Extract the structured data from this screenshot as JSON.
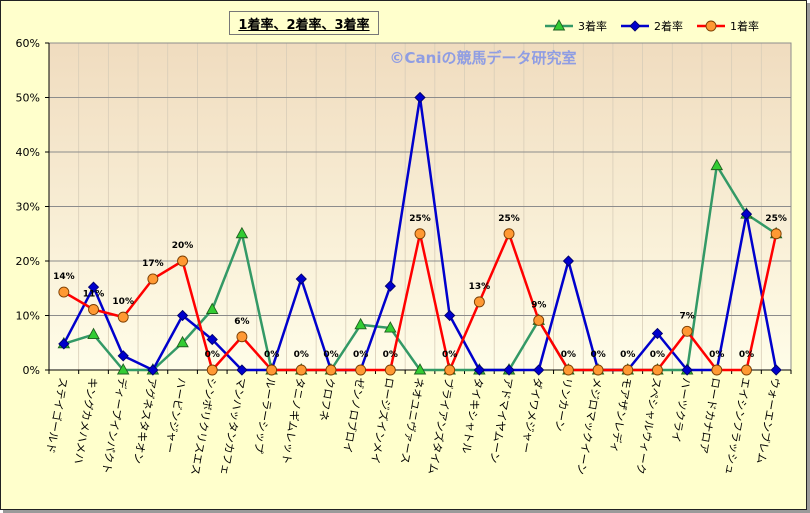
{
  "chart_data": {
    "type": "line",
    "title": "1着率、2着率、3着率",
    "categories": [
      "ステイゴールド",
      "キングカメハメハ",
      "ディープインパクト",
      "アグネスタキオン",
      "ハービンジャー",
      "シンボリクリスエス",
      "マンハッタンカフェ",
      "ルーラーシップ",
      "タニノギムレット",
      "クロフネ",
      "ゼンノロブロイ",
      "ロージズインメイ",
      "ネオユニヴァース",
      "ブライアンズタイム",
      "タイキシャトル",
      "アドマイヤムーン",
      "ダイワメジャー",
      "リンカーン",
      "メジロマックイーン",
      "モアザンレディ",
      "スペシャルウィーク",
      "ハーツクライ",
      "ロードカナロア",
      "エイシンフラッシュ",
      "ウォーエンブレム"
    ],
    "ylim": [
      0,
      60
    ],
    "yticks": [
      0,
      10,
      20,
      30,
      40,
      50,
      60
    ],
    "ytick_labels": [
      "0%",
      "10%",
      "20%",
      "30%",
      "40%",
      "50%",
      "60%"
    ],
    "grid": {
      "horizontal": true,
      "vertical": true
    },
    "legend": "top-right",
    "series": [
      {
        "name": "3着率",
        "color": "#339966",
        "marker": "triangle",
        "marker_fill": "#33cc33",
        "marker_edge": "#1f5f1f",
        "values": [
          4.8,
          6.5,
          0,
          0,
          5.0,
          11.1,
          25.0,
          0,
          0,
          0,
          8.3,
          7.7,
          0,
          0,
          0,
          0,
          9.1,
          0,
          0,
          0,
          0,
          0,
          37.5,
          28.6,
          25.0
        ]
      },
      {
        "name": "2着率",
        "color": "#0000cc",
        "marker": "diamond",
        "marker_fill": "#0000cc",
        "marker_edge": "#00006e",
        "values": [
          4.8,
          15.2,
          2.6,
          0,
          10.0,
          5.6,
          0,
          0,
          16.7,
          0,
          0,
          15.4,
          50.0,
          10.0,
          0,
          0,
          0,
          20.0,
          0,
          0,
          6.7,
          0,
          0,
          28.6,
          0
        ]
      },
      {
        "name": "1着率",
        "color": "#ff0000",
        "marker": "circle",
        "marker_fill": "#ff9933",
        "marker_edge": "#7a3d00",
        "values": [
          14.3,
          11.1,
          9.7,
          16.7,
          20.0,
          0,
          6.1,
          0,
          0,
          0,
          0,
          0,
          25.0,
          0,
          12.5,
          25.0,
          9.1,
          0,
          0,
          0,
          0,
          7.1,
          0,
          0,
          25.0
        ],
        "data_labels": [
          "14%",
          "11%",
          "10%",
          "17%",
          "20%",
          "0%",
          "6%",
          "0%",
          "0%",
          "0%",
          "0%",
          "0%",
          "25%",
          "0%",
          "13%",
          "25%",
          "9%",
          "0%",
          "0%",
          "0%",
          "0%",
          "7%",
          "0%",
          "0%",
          "25%"
        ]
      }
    ]
  },
  "watermark": "©Caniの競馬データ研究室",
  "colors": {
    "chart_background": "#ffffcc",
    "plot_top": "#f0dcbf",
    "plot_bottom": "#fffde8",
    "watermark": "#8f9de3"
  }
}
